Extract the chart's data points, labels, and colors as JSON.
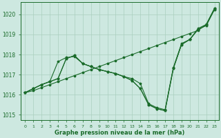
{
  "title": "Graphe pression niveau de la mer (hPa)",
  "hours": [
    0,
    1,
    2,
    3,
    4,
    5,
    6,
    7,
    8,
    9,
    10,
    11,
    12,
    13,
    14,
    15,
    16,
    17,
    18,
    19,
    20,
    21,
    22,
    23
  ],
  "line1": [
    1016.1,
    1016.2,
    1016.35,
    1016.5,
    1016.65,
    1016.8,
    1016.95,
    1017.1,
    1017.25,
    1017.4,
    1017.55,
    1017.7,
    1017.85,
    1018.0,
    1018.15,
    1018.3,
    1018.45,
    1018.6,
    1018.75,
    1018.9,
    1019.05,
    1019.2,
    1019.5,
    1020.3
  ],
  "line2": [
    1016.1,
    1016.3,
    1016.5,
    1016.65,
    1016.8,
    1017.8,
    1017.95,
    1017.55,
    1017.4,
    1017.25,
    1017.15,
    1017.05,
    1016.9,
    1016.7,
    1016.3,
    1015.5,
    1015.3,
    1015.2,
    1017.3,
    1018.5,
    1018.75,
    1019.25,
    1019.45,
    1020.25
  ],
  "line3": [
    1016.1,
    1016.3,
    1016.5,
    1016.65,
    1016.8,
    1017.8,
    1017.95,
    1017.55,
    1017.4,
    1017.25,
    1017.15,
    1017.05,
    1016.9,
    1016.7,
    1016.3,
    1015.5,
    1015.3,
    1015.2,
    1017.3,
    1018.5,
    1018.75,
    1019.25,
    1019.45,
    1020.25
  ],
  "line4": [
    1016.1,
    1016.3,
    1016.5,
    1016.65,
    1017.65,
    1017.85,
    1017.9,
    1017.55,
    1017.4,
    1017.25,
    1017.15,
    1017.05,
    1016.9,
    1016.8,
    1016.55,
    1015.55,
    1015.35,
    1015.25,
    1017.35,
    1018.55,
    1018.75,
    1019.3,
    1019.5,
    1020.3
  ],
  "ylim": [
    1014.75,
    1020.6
  ],
  "yticks": [
    1015,
    1016,
    1017,
    1018,
    1019,
    1020
  ],
  "bg_color": "#cde8e0",
  "grid_color": "#aacfbe",
  "line_color": "#1a6b2a",
  "linewidth": 0.8,
  "markersize": 2.5
}
